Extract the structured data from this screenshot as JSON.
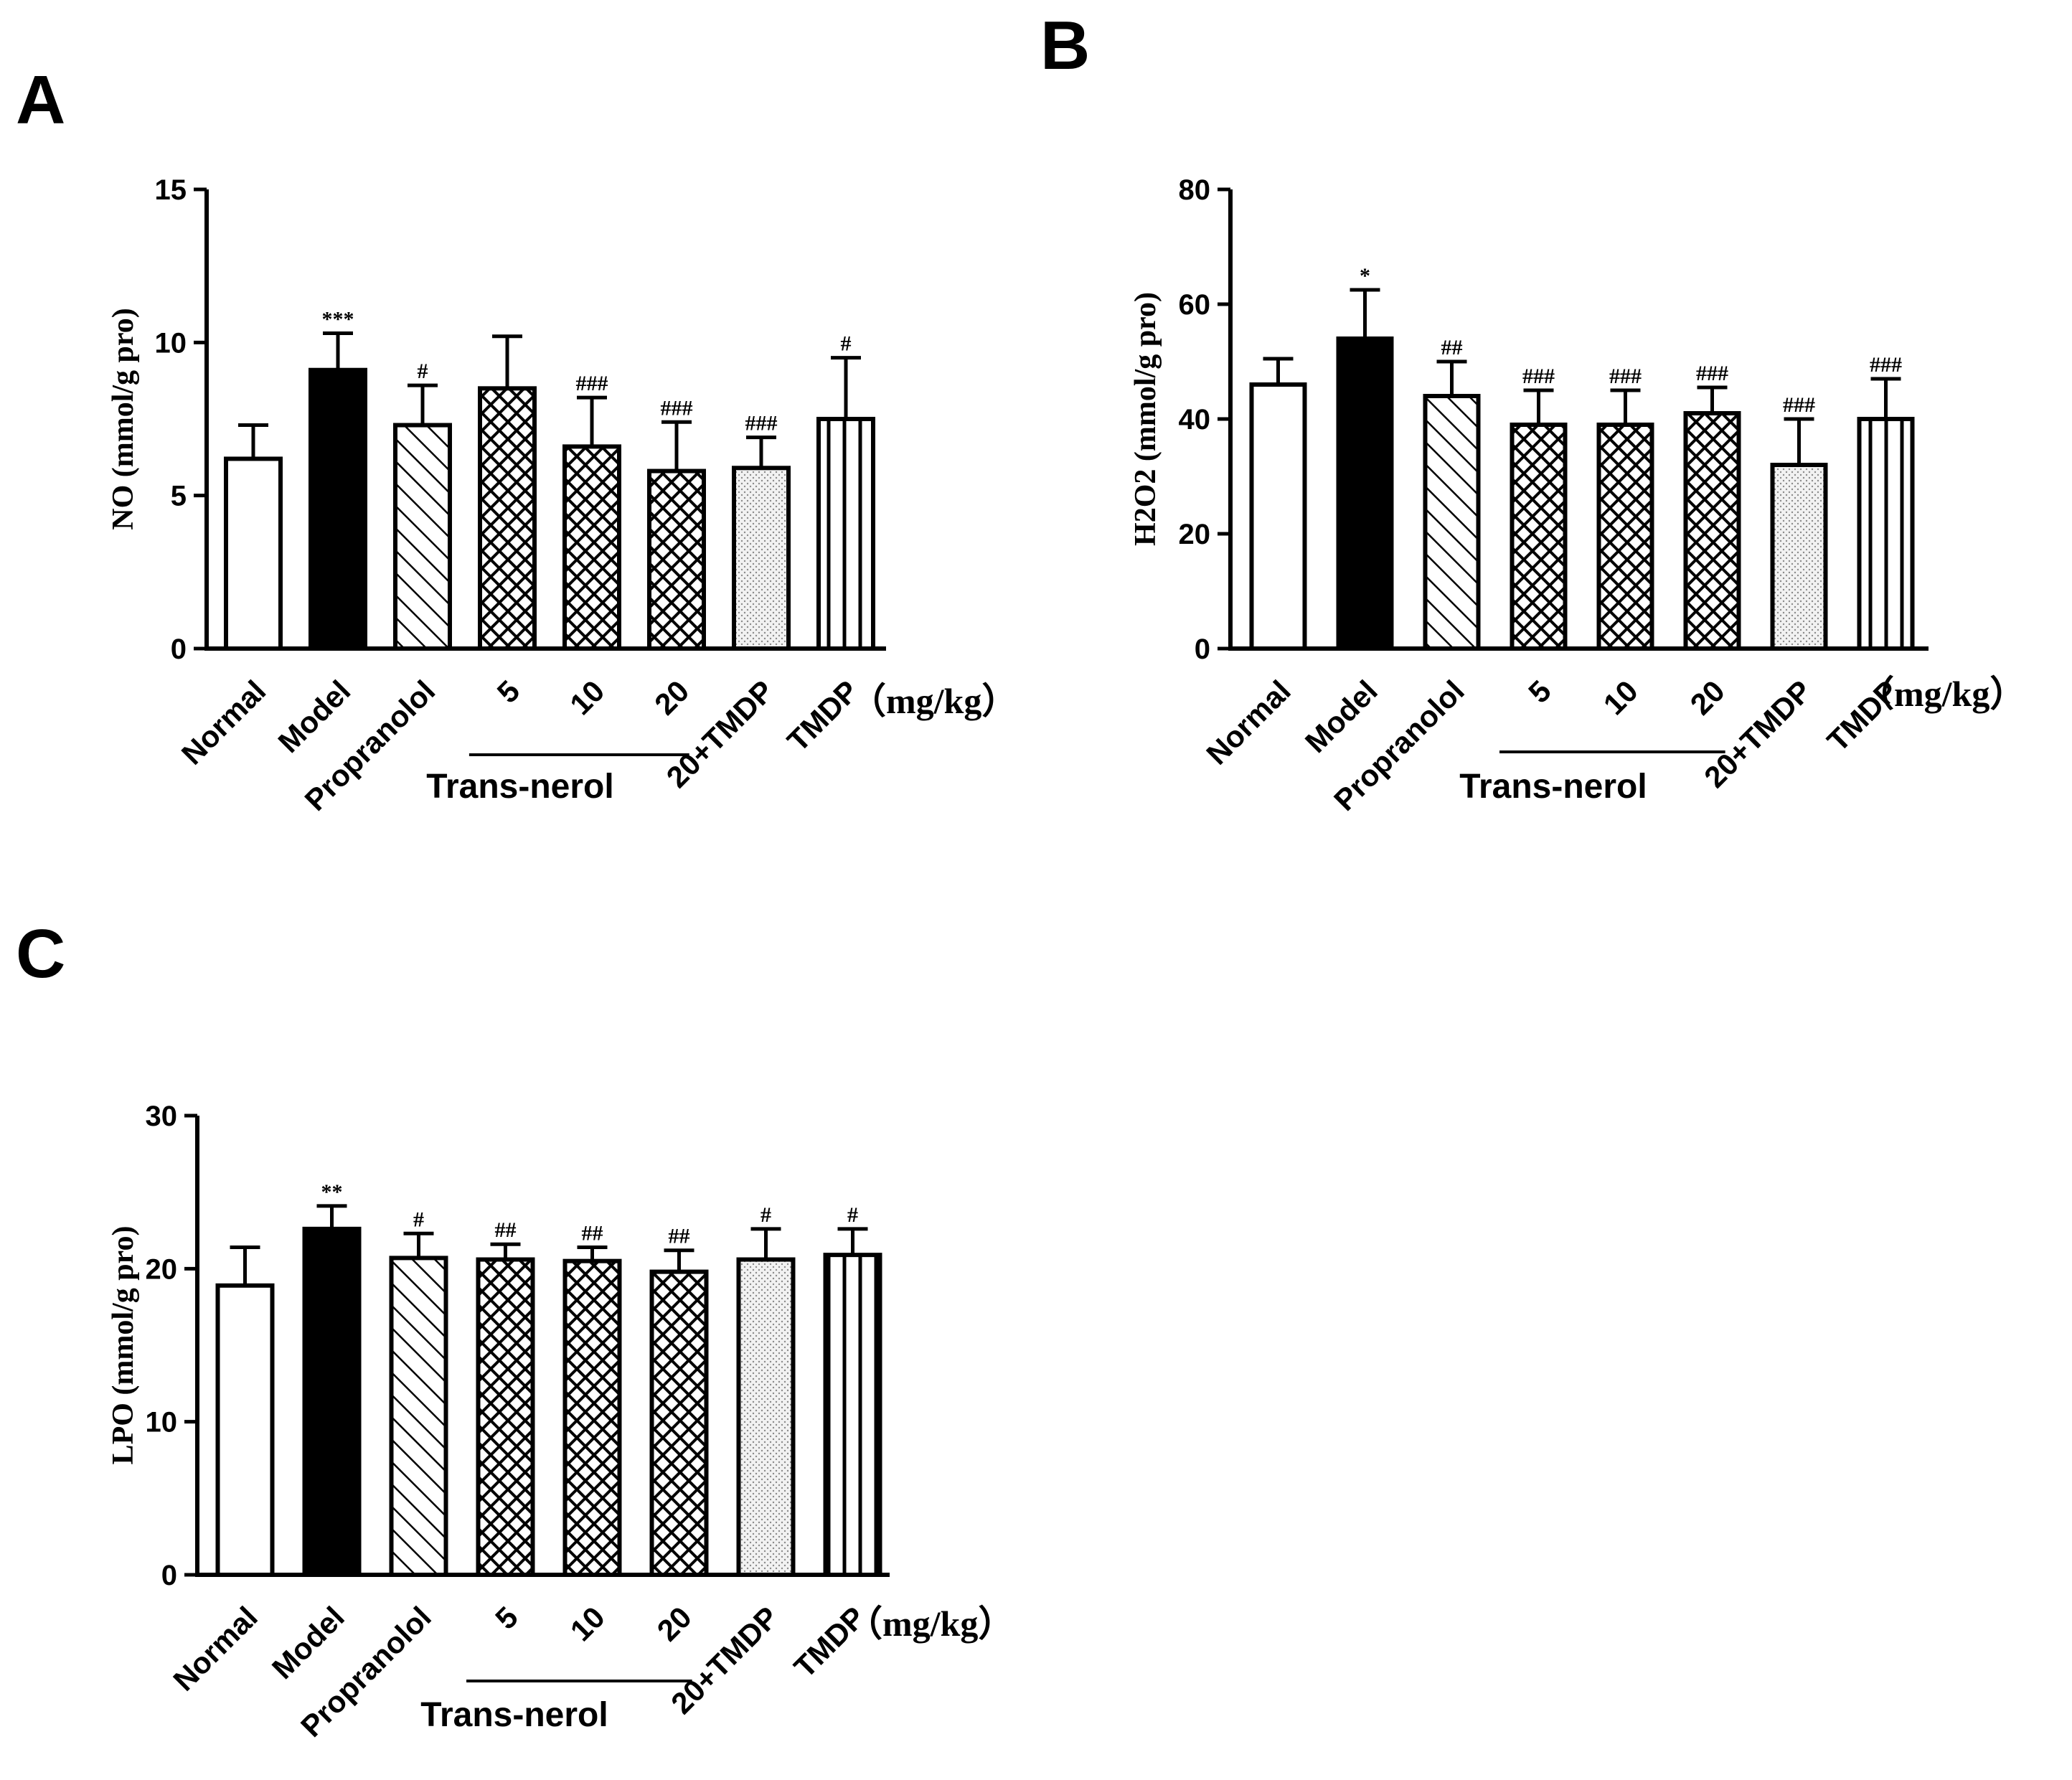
{
  "figure": {
    "unit_label": "（mg/kg）",
    "group_label": "Trans-nerol"
  },
  "chart_data": [
    {
      "panel": "A",
      "type": "bar",
      "ylabel": "NO (mmol/g pro)",
      "ylim": [
        0,
        15
      ],
      "yticks": [
        0,
        5,
        10,
        15
      ],
      "categories": [
        "Normal",
        "Model",
        "Propranolol",
        "5",
        "10",
        "20",
        "20+TMDP",
        "TMDP"
      ],
      "patterns": [
        "white",
        "black",
        "diagonal",
        "crosshatch",
        "crosshatch",
        "crosshatch",
        "dots",
        "vertical"
      ],
      "values": [
        6.2,
        9.1,
        7.3,
        8.5,
        6.6,
        5.8,
        5.9,
        7.5
      ],
      "errors": [
        1.1,
        1.2,
        1.3,
        1.7,
        1.6,
        1.6,
        1.0,
        2.0
      ],
      "significance": [
        "",
        "***",
        "#",
        "",
        "###",
        "###",
        "###",
        "#"
      ]
    },
    {
      "panel": "B",
      "type": "bar",
      "ylabel": "H2O2 (mmol/g pro)",
      "ylim": [
        0,
        80
      ],
      "yticks": [
        0,
        20,
        40,
        60,
        80
      ],
      "categories": [
        "Normal",
        "Model",
        "Propranolol",
        "5",
        "10",
        "20",
        "20+TMDP",
        "TMDP"
      ],
      "patterns": [
        "white",
        "black",
        "diagonal",
        "crosshatch",
        "crosshatch",
        "crosshatch",
        "dots",
        "vertical"
      ],
      "values": [
        46,
        54,
        44,
        39,
        39,
        41,
        32,
        40
      ],
      "errors": [
        4.5,
        8.5,
        6,
        6,
        6,
        4.5,
        8,
        7
      ],
      "significance": [
        "",
        "*",
        "##",
        "###",
        "###",
        "###",
        "###",
        "###"
      ]
    },
    {
      "panel": "C",
      "type": "bar",
      "ylabel": "LPO (mmol/g pro)",
      "ylim": [
        0,
        30
      ],
      "yticks": [
        0,
        10,
        20,
        30
      ],
      "categories": [
        "Normal",
        "Model",
        "Propranolol",
        "5",
        "10",
        "20",
        "20+TMDP",
        "TMDP"
      ],
      "patterns": [
        "white",
        "black",
        "diagonal",
        "crosshatch",
        "crosshatch",
        "crosshatch",
        "dots",
        "vertical"
      ],
      "values": [
        18.9,
        22.6,
        20.7,
        20.6,
        20.5,
        19.8,
        20.6,
        20.9
      ],
      "errors": [
        2.5,
        1.5,
        1.6,
        1.0,
        0.9,
        1.4,
        2.0,
        1.7
      ],
      "significance": [
        "",
        "**",
        "#",
        "##",
        "##",
        "##",
        "#",
        "#"
      ]
    }
  ]
}
